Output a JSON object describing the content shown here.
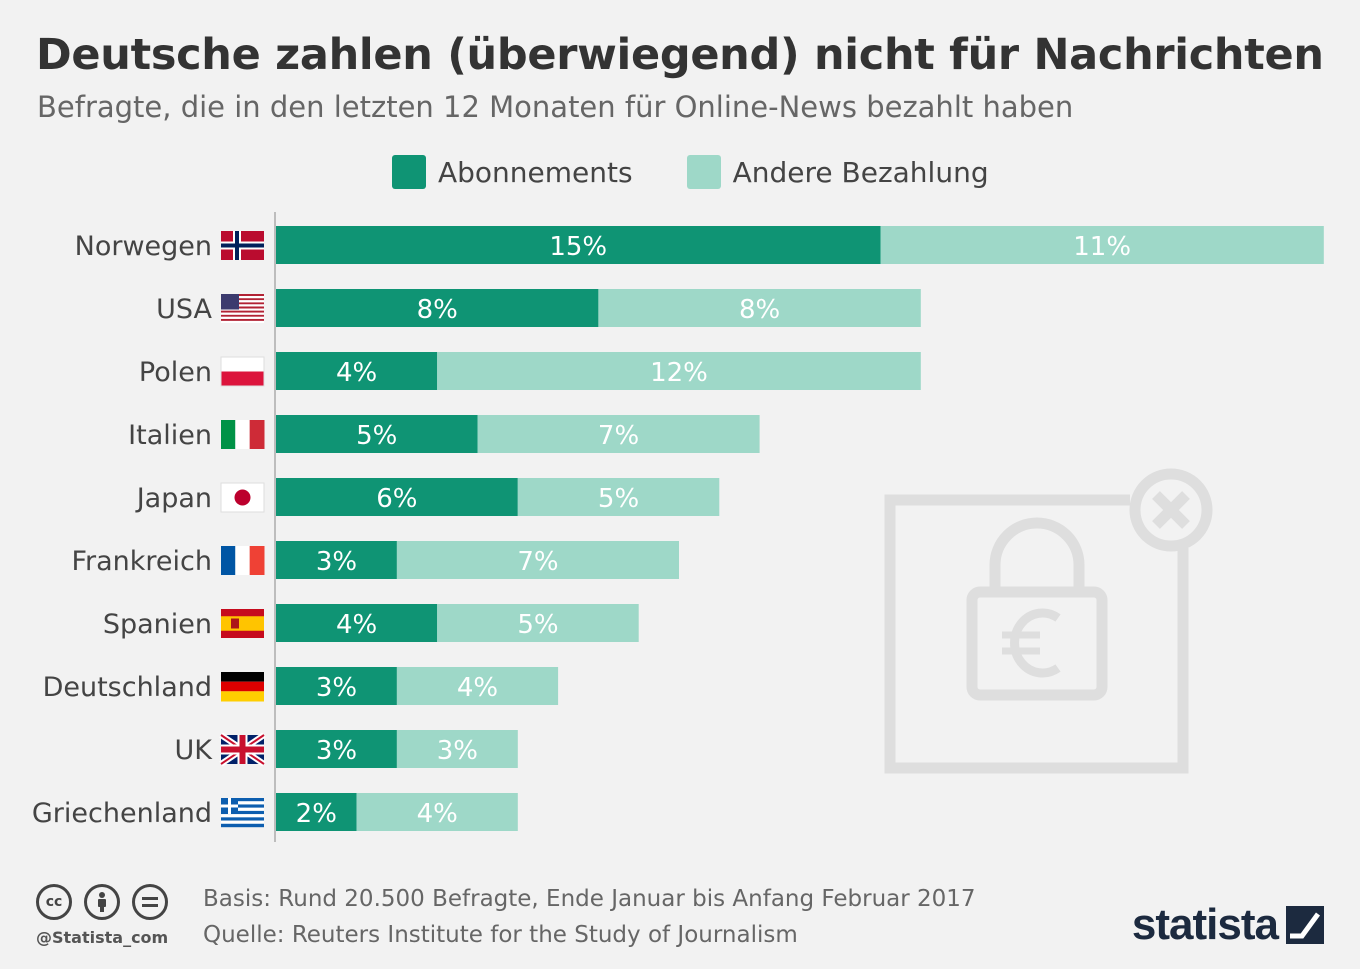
{
  "header": {
    "title": "Deutsche zahlen (überwiegend) nicht für Nachrichten",
    "subtitle": "Befragte, die in den letzten 12 Monaten für Online-News bezahlt haben"
  },
  "colors": {
    "abonnements": "#0f9474",
    "andere": "#9ed8c8",
    "axis": "#bdbdbd",
    "background": "#f2f2f2"
  },
  "chart_data": {
    "type": "bar",
    "orientation": "horizontal",
    "stacked": true,
    "categories": [
      "Norwegen",
      "USA",
      "Polen",
      "Italien",
      "Japan",
      "Frankreich",
      "Spanien",
      "Deutschland",
      "UK",
      "Griechenland"
    ],
    "flags": [
      "norway",
      "usa",
      "poland",
      "italy",
      "japan",
      "france",
      "spain",
      "germany",
      "uk",
      "greece"
    ],
    "series": [
      {
        "name": "Abonnements",
        "values": [
          15,
          8,
          4,
          5,
          6,
          3,
          4,
          3,
          3,
          2
        ]
      },
      {
        "name": "Andere Bezahlung",
        "values": [
          11,
          8,
          12,
          7,
          5,
          7,
          5,
          4,
          3,
          4
        ]
      }
    ],
    "value_suffix": "%",
    "xlim": [
      0,
      26
    ],
    "legend_position": "top",
    "grid": false
  },
  "decoration": {
    "icon": "paywall-lock-euro-icon"
  },
  "footer": {
    "handle": "@Statista_com",
    "basis": "Basis: Rund 20.500 Befragte, Ende Januar bis Anfang Februar 2017",
    "source": "Quelle: Reuters Institute for the Study of Journalism",
    "brand": "statista",
    "license_icons": [
      "cc-icon",
      "by-icon",
      "nd-icon"
    ]
  }
}
